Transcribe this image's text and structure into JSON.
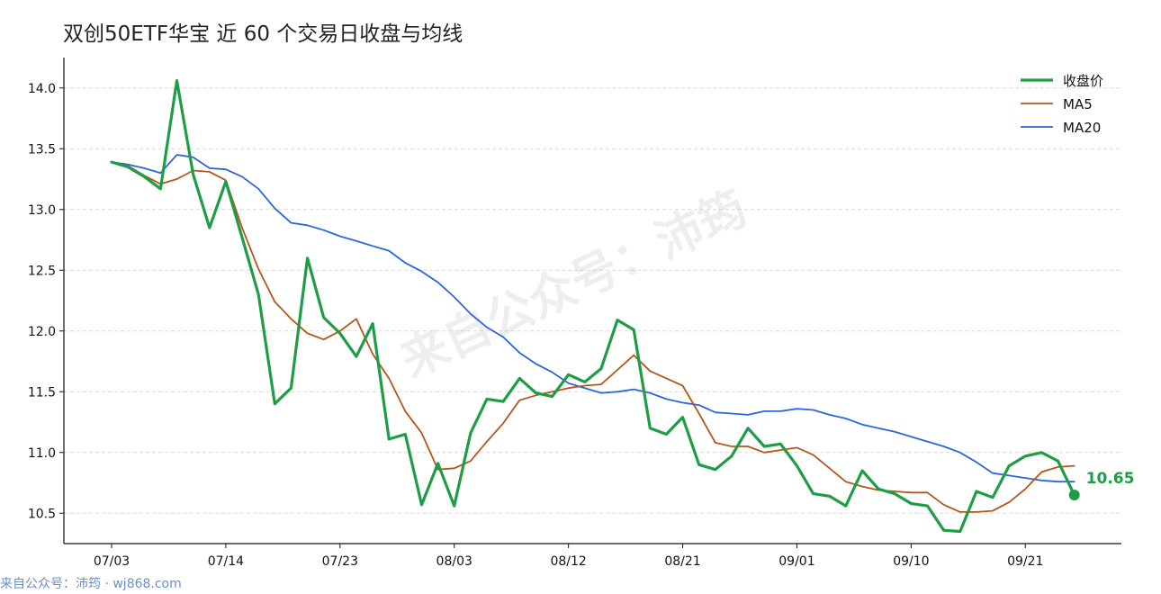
{
  "chart_data": {
    "type": "line",
    "title": "双创50ETF华宝 近 60 个交易日收盘与均线",
    "ylim": [
      10.25,
      14.25
    ],
    "y_ticks": [
      "10.5",
      "11.0",
      "11.5",
      "12.0",
      "12.5",
      "13.0",
      "13.5",
      "14.0"
    ],
    "x_ticks": [
      {
        "index": 0,
        "label": "07/03"
      },
      {
        "index": 7,
        "label": "07/14"
      },
      {
        "index": 14,
        "label": "07/23"
      },
      {
        "index": 21,
        "label": "08/03"
      },
      {
        "index": 28,
        "label": "08/12"
      },
      {
        "index": 35,
        "label": "08/21"
      },
      {
        "index": 42,
        "label": "09/01"
      },
      {
        "index": 49,
        "label": "09/10"
      },
      {
        "index": 56,
        "label": "09/21"
      }
    ],
    "grid": "horizontal",
    "legend_position": "top-right",
    "series": [
      {
        "name": "收盘价",
        "color": "#1f9d46",
        "width": 3.2,
        "values": [
          13.39,
          13.35,
          13.27,
          13.17,
          14.06,
          13.29,
          12.85,
          13.23,
          12.77,
          12.3,
          11.4,
          11.53,
          12.6,
          12.11,
          11.98,
          11.79,
          12.06,
          11.11,
          11.15,
          10.57,
          10.91,
          10.56,
          11.16,
          11.44,
          11.42,
          11.61,
          11.49,
          11.46,
          11.64,
          11.58,
          11.69,
          12.09,
          12.01,
          11.2,
          11.15,
          11.29,
          10.9,
          10.86,
          10.97,
          11.2,
          11.05,
          11.07,
          10.89,
          10.66,
          10.64,
          10.56,
          10.85,
          10.7,
          10.66,
          10.58,
          10.56,
          10.36,
          10.35,
          10.68,
          10.63,
          10.89,
          10.97,
          11.0,
          10.93,
          10.65
        ]
      },
      {
        "name": "MA5",
        "color": "#b5561b",
        "width": 1.8,
        "values": [
          13.39,
          13.36,
          13.28,
          13.21,
          13.25,
          13.32,
          13.31,
          13.24,
          12.85,
          12.51,
          12.24,
          12.1,
          11.98,
          11.93,
          12.0,
          12.1,
          11.81,
          11.61,
          11.34,
          11.16,
          10.86,
          10.87,
          10.93,
          11.09,
          11.24,
          11.43,
          11.47,
          11.5,
          11.53,
          11.55,
          11.56,
          11.68,
          11.8,
          11.67,
          11.61,
          11.55,
          11.32,
          11.08,
          11.05,
          11.05,
          11.0,
          11.02,
          11.04,
          10.98,
          10.87,
          10.76,
          10.72,
          10.69,
          10.68,
          10.67,
          10.67,
          10.57,
          10.51,
          10.51,
          10.52,
          10.59,
          10.7,
          10.84,
          10.88,
          10.89
        ]
      },
      {
        "name": "MA20",
        "color": "#2e64dc",
        "width": 1.8,
        "values": [
          13.39,
          13.37,
          13.34,
          13.3,
          13.45,
          13.43,
          13.34,
          13.33,
          13.27,
          13.17,
          13.01,
          12.89,
          12.87,
          12.83,
          12.78,
          12.74,
          12.7,
          12.66,
          12.56,
          12.49,
          12.4,
          12.28,
          12.14,
          12.03,
          11.95,
          11.82,
          11.73,
          11.66,
          11.57,
          11.53,
          11.49,
          11.5,
          11.52,
          11.49,
          11.44,
          11.41,
          11.39,
          11.33,
          11.32,
          11.31,
          11.34,
          11.34,
          11.36,
          11.35,
          11.31,
          11.28,
          11.23,
          11.2,
          11.17,
          11.13,
          11.09,
          11.05,
          11.0,
          10.92,
          10.83,
          10.81,
          10.79,
          10.77,
          10.76,
          10.76
        ]
      }
    ],
    "end_label": "10.65"
  },
  "watermark": "来自公众号：沛筠",
  "footer": "来自公众号：沛筠 · wj868.com"
}
